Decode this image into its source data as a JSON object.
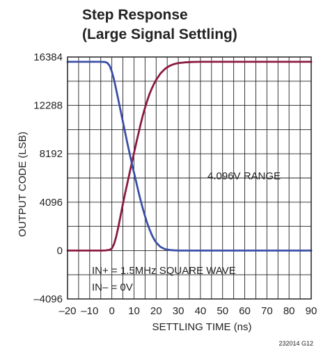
{
  "chart_data": {
    "type": "line",
    "title_line1": "Step Response",
    "title_line2": "(Large Signal Settling)",
    "xlabel": "SETTLING TIME (ns)",
    "ylabel": "OUTPUT CODE (LSB)",
    "xlim": [
      -20,
      90
    ],
    "ylim": [
      -4096,
      16384
    ],
    "xticks": [
      -20,
      -10,
      0,
      10,
      20,
      30,
      40,
      50,
      60,
      70,
      80,
      90
    ],
    "xtick_labels": [
      "–20",
      "–10",
      "0",
      "10",
      "20",
      "30",
      "40",
      "50",
      "60",
      "70",
      "80",
      "90"
    ],
    "yticks": [
      -4096,
      0,
      4096,
      8192,
      12288,
      16384
    ],
    "ytick_labels": [
      "–4096",
      "0",
      "4096",
      "8192",
      "12288",
      "16384"
    ],
    "x_minor_step": 5,
    "y_minor_step": 2048,
    "grid": true,
    "annotations": {
      "range": "4.096V RANGE",
      "in_plus": "IN+ = 1.5MHz SQUARE WAVE",
      "in_minus": "IN– = 0V"
    },
    "figure_id": "232014 G12",
    "series": [
      {
        "color": "#8b1a3e",
        "x": [
          -20,
          -10,
          -5,
          -3,
          -1,
          0,
          1,
          2,
          3,
          4,
          5,
          6,
          7,
          8,
          9,
          10,
          11,
          12,
          13,
          14,
          15,
          16,
          17,
          18,
          19,
          20,
          22,
          24,
          26,
          28,
          30,
          33,
          36,
          40,
          45,
          50,
          60,
          70,
          80,
          90
        ],
        "y": [
          0,
          0,
          0,
          10,
          60,
          180,
          550,
          1200,
          2050,
          3000,
          3950,
          4850,
          5700,
          6550,
          7400,
          8250,
          9100,
          9900,
          10700,
          11450,
          12100,
          12700,
          13250,
          13700,
          14100,
          14450,
          15000,
          15380,
          15630,
          15780,
          15870,
          15930,
          15960,
          15980,
          15980,
          15980,
          15980,
          15980,
          15980,
          15980
        ]
      },
      {
        "color": "#3a4fa6",
        "x": [
          -20,
          -10,
          -5,
          -3,
          -2,
          -1,
          0,
          1,
          2,
          3,
          4,
          5,
          6,
          7,
          8,
          9,
          10,
          11,
          12,
          13,
          14,
          15,
          16,
          17,
          18,
          19,
          20,
          22,
          24,
          26,
          28,
          30,
          33,
          36,
          40,
          50,
          60,
          70,
          80,
          90
        ],
        "y": [
          15980,
          15980,
          15980,
          15960,
          15880,
          15650,
          15150,
          14450,
          13600,
          12700,
          11800,
          10900,
          10000,
          9100,
          8250,
          7400,
          6600,
          5800,
          5000,
          4250,
          3550,
          2900,
          2300,
          1800,
          1350,
          980,
          680,
          300,
          120,
          50,
          20,
          5,
          0,
          0,
          0,
          0,
          0,
          0,
          0,
          0
        ]
      }
    ]
  }
}
